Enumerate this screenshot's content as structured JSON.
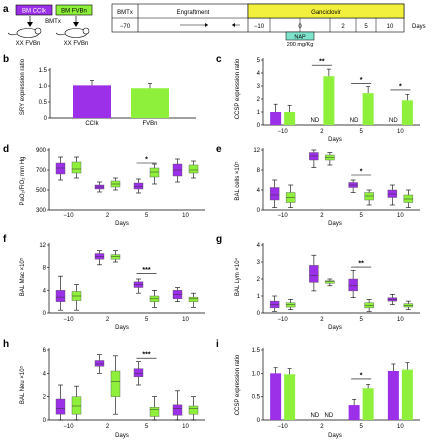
{
  "colors": {
    "ccik": "#9b30e8",
    "fvbn": "#8ef03a",
    "ganciclovir": "#f3ef3d",
    "nap": "#7fe3cc"
  },
  "panel_a": {
    "letter": "a",
    "donor_ccik": "BM CCIk",
    "donor_fvbn": "BM FVBn",
    "bmtx": "BMTx",
    "recipient_1": "XX FVBn",
    "recipient_2": "XX FVBn",
    "timeline": {
      "row_label": "BMTx",
      "day_start": "−70",
      "engraftment": "Engraftment",
      "ganciclovir": "Ganciclovir",
      "ticks": [
        "−10",
        "0",
        "2",
        "5",
        "10"
      ],
      "days_label": "Days",
      "nap_label": "NAP",
      "nap_dose": "200 mg/Kg"
    }
  },
  "chart_data": [
    {
      "id": "b",
      "letter": "b",
      "type": "bar",
      "ylabel": "SRY expression ratio",
      "ylim": [
        0,
        1.5
      ],
      "yticks": [
        0,
        0.5,
        1.0,
        1.5
      ],
      "ytick_labels": [
        "0",
        "0.5",
        "1.0",
        "1.5"
      ],
      "categories": [
        "CCIk",
        "FVBn"
      ],
      "values": [
        1.02,
        0.93
      ],
      "errors": [
        0.15,
        0.15
      ]
    },
    {
      "id": "c",
      "letter": "c",
      "type": "bar",
      "ylabel": "CCSP expression ratio",
      "xlabel": "Days",
      "ylim": [
        0,
        5
      ],
      "yticks": [
        0,
        1,
        2,
        3,
        4,
        5
      ],
      "ytick_labels": [
        "0",
        "1",
        "2",
        "3",
        "4",
        "5"
      ],
      "categories": [
        "−10",
        "2",
        "5",
        "10"
      ],
      "series": [
        {
          "values": [
            1.0,
            null,
            null,
            null
          ],
          "errors": [
            0.6,
            null,
            null,
            null
          ]
        },
        {
          "values": [
            1.0,
            3.75,
            2.45,
            1.9
          ],
          "errors": [
            0.5,
            0.55,
            0.5,
            0.45
          ]
        }
      ],
      "nd_label": "ND",
      "nd_groups": [
        1,
        2,
        3
      ],
      "significance": [
        {
          "group": 1,
          "label": "**",
          "y": 4.6
        },
        {
          "group": 2,
          "label": "*",
          "y": 3.2
        },
        {
          "group": 3,
          "label": "*",
          "y": 2.7
        }
      ]
    },
    {
      "id": "d",
      "letter": "d",
      "type": "box",
      "ylabel": "PaO₂/FiO₂ mm Hg",
      "xlabel": "Days",
      "ylim": [
        300,
        900
      ],
      "yticks": [
        300,
        500,
        700,
        900
      ],
      "ytick_labels": [
        "300",
        "500",
        "700",
        "900"
      ],
      "categories": [
        "−10",
        "2",
        "5",
        "10"
      ],
      "series": [
        {
          "boxes": [
            [
              600,
              660,
              720,
              770,
              830
            ],
            [
              480,
              510,
              530,
              550,
              580
            ],
            [
              470,
              510,
              535,
              570,
              610
            ],
            [
              580,
              640,
              700,
              760,
              810
            ]
          ]
        },
        {
          "boxes": [
            [
              620,
              670,
              710,
              780,
              830
            ],
            [
              500,
              530,
              560,
              590,
              620
            ],
            [
              560,
              630,
              680,
              720,
              760
            ],
            [
              620,
              670,
              700,
              750,
              790
            ]
          ]
        }
      ],
      "significance": [
        {
          "group": 2,
          "label": "*",
          "y": 770
        }
      ]
    },
    {
      "id": "e",
      "letter": "e",
      "type": "box",
      "ylabel": "BAL cells ×10⁵",
      "xlabel": "Days",
      "ylim": [
        0,
        12
      ],
      "yticks": [
        0,
        4,
        8,
        12
      ],
      "ytick_labels": [
        "0",
        "4",
        "8",
        "12"
      ],
      "categories": [
        "−10",
        "2",
        "5",
        "10"
      ],
      "series": [
        {
          "boxes": [
            [
              0.5,
              2.0,
              3.0,
              4.5,
              6.0
            ],
            [
              8.5,
              10.0,
              10.8,
              11.5,
              12.0
            ],
            [
              3.5,
              4.5,
              5.0,
              5.5,
              6.0
            ],
            [
              1.0,
              2.5,
              3.2,
              4.0,
              5.0
            ]
          ]
        },
        {
          "boxes": [
            [
              0.5,
              1.5,
              2.5,
              3.5,
              5.0
            ],
            [
              9.0,
              10.0,
              10.5,
              11.0,
              11.5
            ],
            [
              1.0,
              2.0,
              2.8,
              3.5,
              4.0
            ],
            [
              0.5,
              1.5,
              2.2,
              3.0,
              4.0
            ]
          ]
        }
      ],
      "significance": [
        {
          "group": 2,
          "label": "*",
          "y": 7.0
        }
      ]
    },
    {
      "id": "f",
      "letter": "f",
      "type": "box",
      "ylabel": "BAL Mac ×10⁵",
      "xlabel": "Days",
      "ylim": [
        0,
        12
      ],
      "yticks": [
        0,
        4,
        8,
        12
      ],
      "ytick_labels": [
        "0",
        "4",
        "8",
        "12"
      ],
      "categories": [
        "−10",
        "2",
        "5",
        "10"
      ],
      "series": [
        {
          "boxes": [
            [
              0.5,
              2.0,
              2.8,
              4.0,
              6.5
            ],
            [
              8.5,
              9.5,
              10.0,
              10.5,
              11.0
            ],
            [
              3.5,
              4.5,
              5.0,
              5.5,
              6.0
            ],
            [
              2.0,
              2.5,
              3.3,
              4.0,
              4.5
            ]
          ]
        },
        {
          "boxes": [
            [
              0.5,
              2.2,
              3.0,
              3.8,
              5.0
            ],
            [
              9.0,
              9.5,
              10.0,
              10.3,
              11.0
            ],
            [
              1.0,
              2.0,
              2.5,
              3.0,
              4.0
            ],
            [
              1.0,
              2.0,
              2.5,
              2.8,
              3.5
            ]
          ]
        }
      ],
      "significance": [
        {
          "group": 2,
          "label": "***",
          "y": 7.0
        }
      ]
    },
    {
      "id": "g",
      "letter": "g",
      "type": "box",
      "ylabel": "BAL Lym ×10⁴",
      "xlabel": "Days",
      "ylim": [
        0,
        4
      ],
      "yticks": [
        0,
        1,
        2,
        3,
        4
      ],
      "ytick_labels": [
        "0",
        "1",
        "2",
        "3",
        "4"
      ],
      "categories": [
        "−10",
        "2",
        "5",
        "10"
      ],
      "series": [
        {
          "boxes": [
            [
              0.1,
              0.3,
              0.5,
              0.7,
              1.0
            ],
            [
              1.3,
              1.8,
              2.2,
              2.8,
              3.4
            ],
            [
              0.9,
              1.3,
              1.6,
              2.0,
              2.5
            ],
            [
              0.5,
              0.7,
              0.8,
              0.9,
              1.1
            ]
          ]
        },
        {
          "boxes": [
            [
              0.2,
              0.35,
              0.5,
              0.6,
              0.8
            ],
            [
              1.6,
              1.75,
              1.85,
              1.9,
              2.0
            ],
            [
              0.1,
              0.3,
              0.45,
              0.6,
              0.8
            ],
            [
              0.2,
              0.35,
              0.45,
              0.55,
              0.7
            ]
          ]
        }
      ],
      "significance": [
        {
          "group": 2,
          "label": "**",
          "y": 2.7
        }
      ]
    },
    {
      "id": "h",
      "letter": "h",
      "type": "box",
      "ylabel": "BAL Neu ×10⁵",
      "xlabel": "Days",
      "ylim": [
        0,
        6
      ],
      "yticks": [
        0,
        2,
        4,
        6
      ],
      "ytick_labels": [
        "0",
        "2",
        "4",
        "6"
      ],
      "categories": [
        "−10",
        "2",
        "5",
        "10"
      ],
      "series": [
        {
          "boxes": [
            [
              0.0,
              0.5,
              1.0,
              1.8,
              3.0
            ],
            [
              4.0,
              4.6,
              4.8,
              5.1,
              5.6
            ],
            [
              3.0,
              3.7,
              4.0,
              4.4,
              5.0
            ],
            [
              0.0,
              0.4,
              1.0,
              1.3,
              2.5
            ]
          ]
        },
        {
          "boxes": [
            [
              0.0,
              0.5,
              1.2,
              2.0,
              2.9
            ],
            [
              0.5,
              2.0,
              3.3,
              4.2,
              5.5
            ],
            [
              0.0,
              0.3,
              0.9,
              1.1,
              2.0
            ],
            [
              0.0,
              0.5,
              1.0,
              1.2,
              2.0
            ]
          ]
        }
      ],
      "significance": [
        {
          "group": 2,
          "label": "***",
          "y": 5.3
        }
      ]
    },
    {
      "id": "i",
      "letter": "i",
      "type": "bar",
      "ylabel": "CCSP expression ratio",
      "xlabel": "Days",
      "ylim": [
        0,
        1.5
      ],
      "yticks": [
        0,
        0.5,
        1.0,
        1.5
      ],
      "ytick_labels": [
        "0",
        "0.5",
        "1.0",
        "1.5"
      ],
      "categories": [
        "−10",
        "2",
        "5",
        "10"
      ],
      "series": [
        {
          "values": [
            1.0,
            null,
            0.32,
            1.05
          ],
          "errors": [
            0.12,
            null,
            0.12,
            0.15
          ]
        },
        {
          "values": [
            0.98,
            null,
            0.68,
            1.08
          ],
          "errors": [
            0.12,
            null,
            0.08,
            0.15
          ]
        }
      ],
      "nd_label": "ND",
      "nd_groups": [
        1
      ],
      "nd_pair": true,
      "significance": [
        {
          "group": 2,
          "label": "*",
          "y": 0.88
        }
      ]
    }
  ]
}
